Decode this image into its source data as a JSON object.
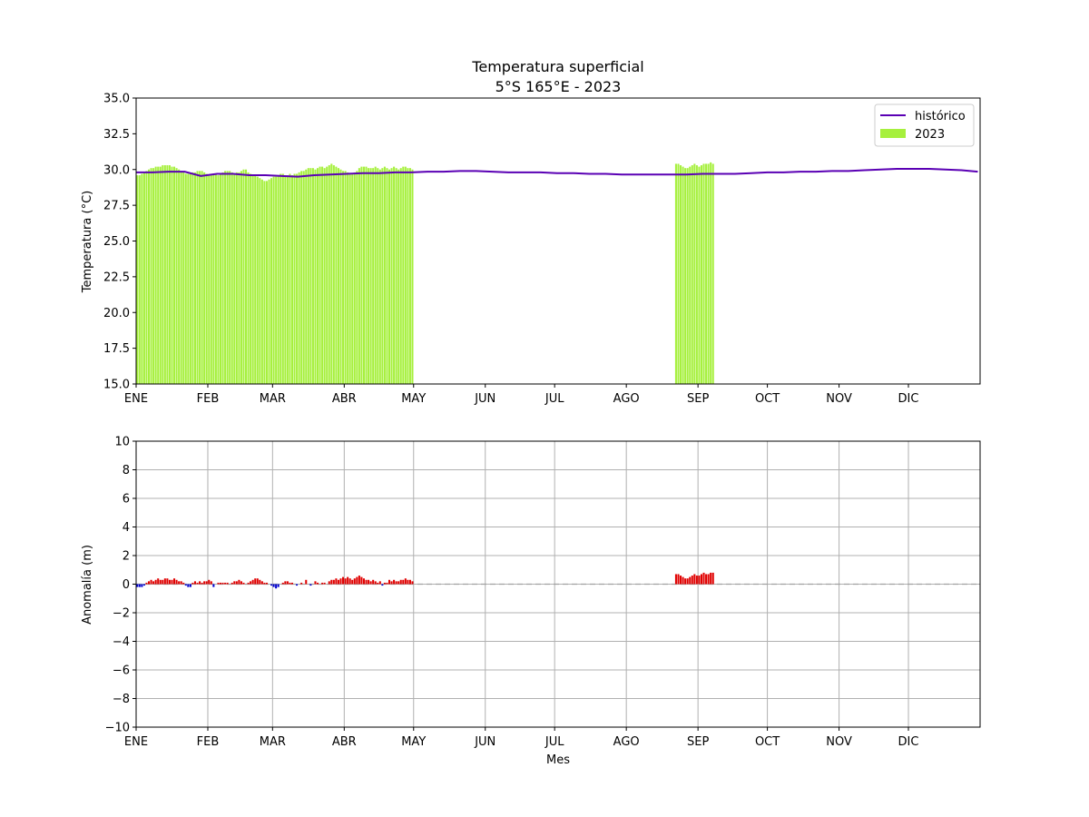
{
  "chart_data": [
    {
      "type": "bar",
      "title": "Temperatura superficial",
      "subtitle": "5°S 165°E - 2023",
      "xlabel": "",
      "ylabel": "Temperatura (°C)",
      "ylim": [
        15.0,
        35.0
      ],
      "yticks": [
        "15.0",
        "17.5",
        "20.0",
        "22.5",
        "25.0",
        "27.5",
        "30.0",
        "32.5",
        "35.0"
      ],
      "x_unit": "day of year",
      "xlim": [
        1,
        366
      ],
      "month_labels": [
        "ENE",
        "FEB",
        "MAR",
        "ABR",
        "MAY",
        "JUN",
        "JUL",
        "AGO",
        "SEP",
        "OCT",
        "NOV",
        "DIC"
      ],
      "month_starts": [
        1,
        32,
        60,
        91,
        121,
        152,
        182,
        213,
        244,
        274,
        305,
        335
      ],
      "grid": false,
      "legend": {
        "placement": "top-right",
        "entries": [
          "histórico",
          "2023"
        ]
      },
      "colors": {
        "bars": "#a6f03d",
        "line": "#5a00b4"
      },
      "historico": {
        "name": "histórico",
        "x": [
          1,
          8,
          15,
          22,
          29,
          36,
          43,
          50,
          57,
          64,
          71,
          78,
          85,
          92,
          99,
          106,
          113,
          120,
          127,
          134,
          141,
          148,
          155,
          162,
          169,
          176,
          183,
          190,
          197,
          204,
          211,
          218,
          225,
          232,
          239,
          246,
          253,
          260,
          267,
          274,
          281,
          288,
          295,
          302,
          309,
          316,
          323,
          330,
          337,
          344,
          351,
          358,
          365
        ],
        "y": [
          29.8,
          29.8,
          29.85,
          29.85,
          29.55,
          29.7,
          29.7,
          29.6,
          29.6,
          29.55,
          29.5,
          29.6,
          29.65,
          29.7,
          29.75,
          29.75,
          29.8,
          29.8,
          29.85,
          29.85,
          29.9,
          29.9,
          29.85,
          29.8,
          29.8,
          29.8,
          29.75,
          29.75,
          29.7,
          29.7,
          29.65,
          29.65,
          29.65,
          29.65,
          29.65,
          29.7,
          29.7,
          29.7,
          29.75,
          29.8,
          29.8,
          29.85,
          29.85,
          29.9,
          29.9,
          29.95,
          30.0,
          30.05,
          30.05,
          30.05,
          30.0,
          29.95,
          29.85
        ]
      },
      "obs2023": {
        "name": "2023",
        "segments": [
          {
            "start_day": 1,
            "values": [
              29.6,
              29.6,
              29.7,
              29.8,
              29.9,
              30.0,
              30.1,
              30.1,
              30.2,
              30.2,
              30.2,
              30.3,
              30.3,
              30.3,
              30.3,
              30.2,
              30.2,
              30.1,
              30.0,
              29.9,
              29.8,
              29.7,
              29.7,
              29.7,
              29.8,
              29.8,
              29.9,
              29.9,
              29.9,
              29.8,
              29.7,
              29.6,
              29.7,
              29.7,
              29.7,
              29.6,
              29.7,
              29.8,
              29.9,
              29.9,
              29.9,
              29.8,
              29.7,
              29.8,
              29.8,
              29.9,
              30.0,
              30.0,
              29.8,
              29.7,
              29.6,
              29.6,
              29.5,
              29.4,
              29.3,
              29.2,
              29.2,
              29.3,
              29.4,
              29.5,
              29.5,
              29.6,
              29.7,
              29.7,
              29.6,
              29.6,
              29.7,
              29.6,
              29.7,
              29.7,
              29.8,
              29.9,
              29.9,
              30.0,
              30.1,
              30.1,
              30.1,
              30.0,
              30.1,
              30.2,
              30.2,
              30.1,
              30.2,
              30.3,
              30.4,
              30.3,
              30.2,
              30.1,
              30.0,
              29.9,
              29.9,
              29.8,
              29.7,
              29.7,
              29.8,
              29.9,
              30.1,
              30.2,
              30.2,
              30.2,
              30.1,
              30.1,
              30.1,
              30.2,
              30.1,
              30.0,
              30.1,
              30.2,
              30.1,
              30.0,
              30.1,
              30.2,
              30.1,
              30.0,
              30.1,
              30.2,
              30.2,
              30.1,
              30.1,
              30.0
            ]
          },
          {
            "start_day": 234,
            "values": [
              30.4,
              30.4,
              30.3,
              30.2,
              30.1,
              30.1,
              30.2,
              30.3,
              30.4,
              30.3,
              30.2,
              30.3,
              30.4,
              30.4,
              30.4,
              30.5,
              30.4
            ]
          }
        ]
      }
    },
    {
      "type": "bar",
      "title": "",
      "xlabel": "Mes",
      "ylabel": "Anomalía (m)",
      "ylim": [
        -10,
        10
      ],
      "yticks": [
        "−10",
        "−8",
        "−6",
        "−4",
        "−2",
        "0",
        "2",
        "4",
        "6",
        "8",
        "10"
      ],
      "x_unit": "day of year",
      "xlim": [
        1,
        366
      ],
      "month_labels": [
        "ENE",
        "FEB",
        "MAR",
        "ABR",
        "MAY",
        "JUN",
        "JUL",
        "AGO",
        "SEP",
        "OCT",
        "NOV",
        "DIC"
      ],
      "month_starts": [
        1,
        32,
        60,
        91,
        121,
        152,
        182,
        213,
        244,
        274,
        305,
        335
      ],
      "grid": true,
      "zero_line": "dashed",
      "colors": {
        "positive": "#e00000",
        "negative": "#0000d0",
        "grid": "#b0b0b0",
        "zero": "#a0a0a0"
      },
      "anomaly": {
        "segments": [
          {
            "start_day": 1,
            "values": [
              -0.2,
              -0.2,
              -0.2,
              -0.1,
              0.1,
              0.2,
              0.3,
              0.2,
              0.3,
              0.4,
              0.3,
              0.3,
              0.4,
              0.4,
              0.3,
              0.3,
              0.4,
              0.3,
              0.2,
              0.2,
              0.1,
              -0.1,
              -0.2,
              -0.2,
              0.1,
              0.2,
              0.1,
              0.2,
              0.1,
              0.2,
              0.2,
              0.3,
              0.2,
              -0.2,
              0.0,
              0.1,
              0.1,
              0.1,
              0.1,
              0.1,
              0.0,
              0.1,
              0.2,
              0.2,
              0.3,
              0.2,
              0.1,
              0.0,
              0.1,
              0.2,
              0.3,
              0.4,
              0.4,
              0.3,
              0.2,
              0.1,
              0.1,
              0.0,
              -0.1,
              -0.2,
              -0.3,
              -0.2,
              0.0,
              0.1,
              0.2,
              0.2,
              0.1,
              0.1,
              0.0,
              -0.1,
              0.0,
              0.1,
              0.0,
              0.3,
              0.0,
              -0.1,
              0.0,
              0.2,
              0.1,
              0.0,
              0.1,
              0.1,
              0.0,
              0.2,
              0.3,
              0.3,
              0.4,
              0.3,
              0.4,
              0.5,
              0.4,
              0.5,
              0.4,
              0.3,
              0.4,
              0.5,
              0.6,
              0.5,
              0.4,
              0.3,
              0.3,
              0.2,
              0.3,
              0.2,
              0.1,
              0.2,
              -0.1,
              0.1,
              0.1,
              0.3,
              0.2,
              0.3,
              0.2,
              0.2,
              0.3,
              0.3,
              0.4,
              0.3,
              0.3,
              0.2
            ]
          },
          {
            "start_day": 234,
            "values": [
              0.7,
              0.7,
              0.6,
              0.5,
              0.4,
              0.4,
              0.5,
              0.6,
              0.7,
              0.6,
              0.6,
              0.7,
              0.8,
              0.7,
              0.7,
              0.8,
              0.8
            ]
          }
        ]
      }
    }
  ]
}
